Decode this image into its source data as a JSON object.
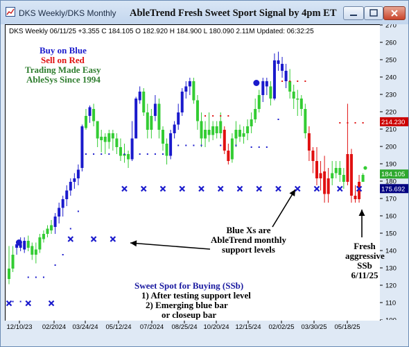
{
  "window": {
    "title": "DKS  Weekly/DKS  Monthly",
    "banner": "AbleTrend Fresh Sweet Sport Signal by 4pm ET",
    "minimize_icon": "minimize-icon",
    "maximize_icon": "maximize-icon",
    "close_icon": "close-icon"
  },
  "info_line": "DKS  Weekly 06/11/25 +3.355 C 184.105 O 182.920 H 184.900 L 180.090 2.11M Updated: 06:32:25",
  "legend": {
    "buy": "Buy on Blue",
    "sell": "Sell on Red",
    "tagline1": "Trading Made Easy",
    "tagline2": "AbleSys Since 1994"
  },
  "annotations": {
    "blue_xs": [
      "Blue Xs are",
      "AbleTrend monthly",
      "support levels"
    ],
    "fresh": [
      "Fresh",
      "aggressive",
      "SSb",
      "6/11/25"
    ],
    "sweet_spot_title": "Sweet Spot for Buying (SSb)",
    "sweet_spot_lines": [
      "1) After testing support level",
      "2) Emerging blue bar",
      "or closeup bar"
    ]
  },
  "chart_data": {
    "type": "bar",
    "symbol": "DKS",
    "ylim": [
      100,
      270
    ],
    "yticks": [
      100,
      110,
      120,
      130,
      140,
      150,
      160,
      170,
      180,
      190,
      200,
      210,
      220,
      230,
      240,
      250,
      260,
      270
    ],
    "xticks": [
      "12/10/23",
      "02/2024",
      "03/24/24",
      "05/12/24",
      "07/2024",
      "08/25/24",
      "10/20/24",
      "12/15/24",
      "02/02/25",
      "03/30/25",
      "05/18/25"
    ],
    "price_labels": [
      {
        "value": "214.230",
        "color": "#cc0000"
      },
      {
        "value": "184.105",
        "color": "#2ea82e"
      },
      {
        "value": "175.692",
        "color": "#000080"
      }
    ],
    "colors": {
      "blue": "#1a1acc",
      "green": "#33cc33",
      "red": "#e01010",
      "x_marks": "#1a1acc"
    },
    "candles": [
      [
        124,
        130,
        143,
        121,
        "g"
      ],
      [
        130,
        138,
        143,
        128,
        "g"
      ],
      [
        142,
        144,
        146,
        138,
        "b"
      ],
      [
        144,
        142,
        148,
        140,
        "b"
      ],
      [
        141,
        146,
        148,
        139,
        "b"
      ],
      [
        146,
        142,
        149,
        140,
        "g"
      ],
      [
        143,
        138,
        145,
        135,
        "g"
      ],
      [
        138,
        141,
        145,
        133,
        "g"
      ],
      [
        141,
        148,
        150,
        139,
        "g"
      ],
      [
        147,
        150,
        152,
        145,
        "g"
      ],
      [
        150,
        153,
        155,
        148,
        "g"
      ],
      [
        152,
        155,
        158,
        150,
        "g"
      ],
      [
        154,
        160,
        162,
        150,
        "b"
      ],
      [
        160,
        165,
        168,
        156,
        "b"
      ],
      [
        165,
        170,
        172,
        160,
        "b"
      ],
      [
        170,
        175,
        178,
        166,
        "b"
      ],
      [
        175,
        180,
        182,
        172,
        "b"
      ],
      [
        180,
        182,
        185,
        176,
        "b"
      ],
      [
        182,
        187,
        190,
        178,
        "b"
      ],
      [
        188,
        212,
        213,
        186,
        "b"
      ],
      [
        211,
        218,
        222,
        210,
        "g"
      ],
      [
        218,
        223,
        224,
        214,
        "b"
      ],
      [
        222,
        215,
        225,
        212,
        "g"
      ],
      [
        215,
        205,
        212,
        200,
        "g"
      ],
      [
        204,
        206,
        210,
        197,
        "g"
      ],
      [
        206,
        203,
        208,
        196,
        "g"
      ],
      [
        203,
        208,
        210,
        199,
        "g"
      ],
      [
        208,
        205,
        210,
        198,
        "g"
      ],
      [
        205,
        200,
        208,
        196,
        "g"
      ],
      [
        200,
        195,
        205,
        192,
        "g"
      ],
      [
        195,
        196,
        202,
        191,
        "g"
      ],
      [
        196,
        193,
        198,
        188,
        "g"
      ],
      [
        193,
        205,
        215,
        192,
        "b"
      ],
      [
        205,
        228,
        229,
        205,
        "b"
      ],
      [
        227,
        232,
        235,
        225,
        "b"
      ],
      [
        232,
        220,
        234,
        218,
        "g"
      ],
      [
        220,
        210,
        225,
        205,
        "g"
      ],
      [
        210,
        218,
        222,
        205,
        "g"
      ],
      [
        218,
        225,
        230,
        215,
        "b"
      ],
      [
        225,
        210,
        228,
        205,
        "g"
      ],
      [
        210,
        202,
        212,
        198,
        "g"
      ],
      [
        202,
        195,
        205,
        190,
        "g"
      ],
      [
        195,
        208,
        210,
        193,
        "b"
      ],
      [
        208,
        213,
        215,
        205,
        "b"
      ],
      [
        213,
        220,
        225,
        210,
        "b"
      ],
      [
        220,
        232,
        234,
        218,
        "b"
      ],
      [
        232,
        235,
        238,
        228,
        "b"
      ],
      [
        235,
        238,
        240,
        230,
        "b"
      ],
      [
        238,
        227,
        240,
        225,
        "g"
      ],
      [
        227,
        215,
        230,
        210,
        "g"
      ],
      [
        215,
        205,
        220,
        200,
        "g"
      ],
      [
        205,
        210,
        215,
        200,
        "g"
      ],
      [
        210,
        207,
        220,
        203,
        "g"
      ],
      [
        207,
        212,
        215,
        204,
        "g"
      ],
      [
        212,
        208,
        215,
        205,
        "g"
      ],
      [
        208,
        215,
        220,
        205,
        "g"
      ],
      [
        210,
        198,
        212,
        196,
        "r"
      ],
      [
        198,
        192,
        202,
        190,
        "r"
      ],
      [
        193,
        205,
        208,
        191,
        "g"
      ],
      [
        205,
        210,
        215,
        200,
        "g"
      ],
      [
        210,
        206,
        213,
        203,
        "g"
      ],
      [
        206,
        208,
        212,
        202,
        "g"
      ],
      [
        208,
        212,
        216,
        204,
        "g"
      ],
      [
        212,
        216,
        220,
        208,
        "g"
      ],
      [
        216,
        222,
        228,
        214,
        "g"
      ],
      [
        222,
        230,
        233,
        220,
        "g"
      ],
      [
        230,
        238,
        240,
        226,
        "b"
      ],
      [
        238,
        235,
        240,
        230,
        "b"
      ],
      [
        235,
        228,
        238,
        224,
        "g"
      ],
      [
        228,
        250,
        254,
        227,
        "b"
      ],
      [
        250,
        248,
        255,
        244,
        "b"
      ],
      [
        248,
        244,
        252,
        240,
        "b"
      ],
      [
        244,
        238,
        248,
        234,
        "b"
      ],
      [
        238,
        232,
        245,
        228,
        "g"
      ],
      [
        232,
        228,
        236,
        222,
        "g"
      ],
      [
        228,
        228,
        233,
        218,
        "g"
      ],
      [
        228,
        222,
        230,
        218,
        "g"
      ],
      [
        222,
        208,
        225,
        205,
        "g"
      ],
      [
        208,
        198,
        212,
        192,
        "r"
      ],
      [
        198,
        192,
        200,
        185,
        "r"
      ],
      [
        192,
        182,
        200,
        178,
        "r"
      ],
      [
        182,
        185,
        192,
        175,
        "r"
      ],
      [
        186,
        173,
        195,
        168,
        "r"
      ],
      [
        173,
        182,
        188,
        168,
        "r"
      ],
      [
        182,
        185,
        192,
        178,
        "g"
      ],
      [
        185,
        188,
        192,
        182,
        "g"
      ],
      [
        188,
        184,
        192,
        180,
        "g"
      ],
      [
        184,
        180,
        188,
        176,
        "g"
      ],
      [
        180,
        196,
        225,
        178,
        "r"
      ],
      [
        196,
        172,
        199,
        168,
        "r"
      ],
      [
        172,
        170,
        178,
        168,
        "r"
      ],
      [
        170,
        180,
        184,
        168,
        "r"
      ],
      [
        180,
        184,
        185,
        180,
        "g"
      ]
    ],
    "support_x": [
      [
        0,
        110
      ],
      [
        5,
        110
      ],
      [
        11,
        110
      ],
      [
        16,
        147
      ],
      [
        22,
        147
      ],
      [
        27,
        147
      ],
      [
        30,
        176
      ],
      [
        35,
        176
      ],
      [
        40,
        176
      ],
      [
        45,
        176
      ],
      [
        50,
        176
      ],
      [
        55,
        176
      ],
      [
        60,
        176
      ],
      [
        65,
        176
      ],
      [
        70,
        176
      ],
      [
        75,
        176
      ],
      [
        80,
        176
      ],
      [
        86,
        176
      ],
      [
        91,
        176
      ]
    ],
    "red_dots": [
      [
        51,
        218
      ],
      [
        53,
        218
      ],
      [
        55,
        218
      ],
      [
        57,
        218
      ],
      [
        71,
        238
      ],
      [
        73,
        238
      ],
      [
        75,
        238
      ],
      [
        77,
        238
      ],
      [
        86,
        214
      ],
      [
        88,
        214
      ],
      [
        90,
        214
      ],
      [
        92,
        214
      ]
    ],
    "blue_dots": [
      [
        1,
        111
      ],
      [
        3,
        111
      ],
      [
        5,
        125
      ],
      [
        7,
        125
      ],
      [
        9,
        125
      ],
      [
        12,
        132
      ],
      [
        14,
        138
      ],
      [
        16,
        153
      ],
      [
        18,
        163
      ],
      [
        20,
        196
      ],
      [
        22,
        196
      ],
      [
        24,
        196
      ],
      [
        26,
        196
      ],
      [
        30,
        196
      ],
      [
        32,
        196
      ],
      [
        34,
        196
      ],
      [
        36,
        196
      ],
      [
        38,
        196
      ],
      [
        40,
        196
      ],
      [
        42,
        196
      ],
      [
        44,
        201
      ],
      [
        46,
        201
      ],
      [
        48,
        201
      ],
      [
        50,
        201
      ],
      [
        55,
        201
      ],
      [
        59,
        201
      ],
      [
        63,
        200
      ],
      [
        65,
        200
      ],
      [
        67,
        200
      ],
      [
        70,
        216
      ]
    ]
  }
}
